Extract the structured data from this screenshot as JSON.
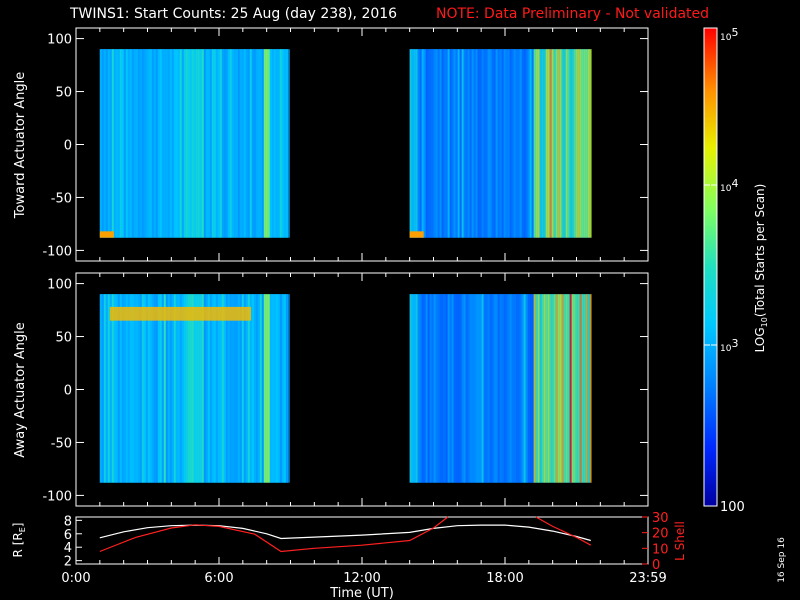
{
  "header": {
    "title": "TWINS1: Start Counts: 25 Aug (day 238), 2016",
    "note": "NOTE: Data Preliminary - Not validated"
  },
  "datestamp": "16 Sep 16",
  "colors": {
    "background": "#000000",
    "axes": "#ffffff",
    "note": "#ff1a1a",
    "r_line": "#ffffff",
    "lshell_line": "#ff2020"
  },
  "chart_data": [
    {
      "type": "heatmap",
      "panel": "toward",
      "ylabel": "Toward Actuator Angle",
      "ylim": [
        -110,
        110
      ],
      "yticks": [
        100,
        50,
        0,
        -50,
        -100
      ],
      "xlim": [
        0,
        24
      ],
      "data_ranges_hours": [
        [
          1.0,
          8.9
        ],
        [
          14.0,
          21.6
        ]
      ],
      "angle_range": [
        -88,
        90
      ]
    },
    {
      "type": "heatmap",
      "panel": "away",
      "ylabel": "Away Actuator Angle",
      "ylim": [
        -110,
        110
      ],
      "yticks": [
        100,
        50,
        0,
        -50,
        -100
      ],
      "xlim": [
        0,
        24
      ],
      "data_ranges_hours": [
        [
          1.0,
          8.9
        ],
        [
          14.0,
          21.6
        ]
      ],
      "angle_range": [
        -88,
        90
      ]
    },
    {
      "type": "line",
      "panel": "orbit",
      "xlabel": "Time (UT)",
      "xlim": [
        0,
        24
      ],
      "xticks": [
        "0:00",
        "6:00",
        "12:00",
        "18:00",
        "23:59"
      ],
      "left_axis": {
        "label": "R [R",
        "label_sub": "E",
        "label_close": "]",
        "ylim": [
          1.5,
          8.5
        ],
        "yticks": [
          "8",
          "6",
          "4",
          "2"
        ]
      },
      "right_axis": {
        "label": "L Shell",
        "ylim": [
          0,
          30
        ],
        "yticks": [
          "30",
          "20",
          "10",
          "0"
        ]
      },
      "series": [
        {
          "axis": "left",
          "x": [
            1.0,
            2.0,
            3.0,
            4.0,
            5.0,
            6.0,
            7.0,
            8.0,
            8.6,
            10.0,
            12.0,
            14.0,
            15.0,
            16.0,
            17.0,
            18.0,
            19.0,
            20.0,
            21.0,
            21.6
          ],
          "y": [
            5.4,
            6.3,
            6.9,
            7.2,
            7.3,
            7.2,
            6.8,
            6.0,
            5.3,
            5.5,
            5.8,
            6.2,
            6.8,
            7.2,
            7.3,
            7.3,
            7.0,
            6.4,
            5.6,
            5.0
          ]
        },
        {
          "axis": "right",
          "x": [
            1.0,
            2.5,
            4.0,
            5.0,
            6.0,
            7.5,
            8.6,
            10.0,
            12.0,
            14.0,
            15.0,
            15.6
          ],
          "y": [
            8.0,
            17.0,
            23.0,
            25.0,
            24.0,
            19.0,
            8.0,
            10.0,
            12.0,
            15.0,
            23.0,
            30.0
          ]
        },
        {
          "axis": "right",
          "x": [
            19.3,
            20.0,
            21.0,
            21.6
          ],
          "y": [
            30.0,
            24.0,
            17.0,
            12.0
          ]
        }
      ]
    }
  ],
  "colorbar": {
    "label_prefix": "LOG",
    "label_sub": "10",
    "label_suffix": "(Total Starts per Scan)",
    "range": [
      100,
      100000
    ],
    "tick_100000": {
      "base": "10",
      "exp": "5"
    },
    "tick_10000": {
      "base": "10",
      "exp": "4"
    },
    "tick_1000": {
      "base": "10",
      "exp": "3"
    },
    "tick_100": "100"
  }
}
